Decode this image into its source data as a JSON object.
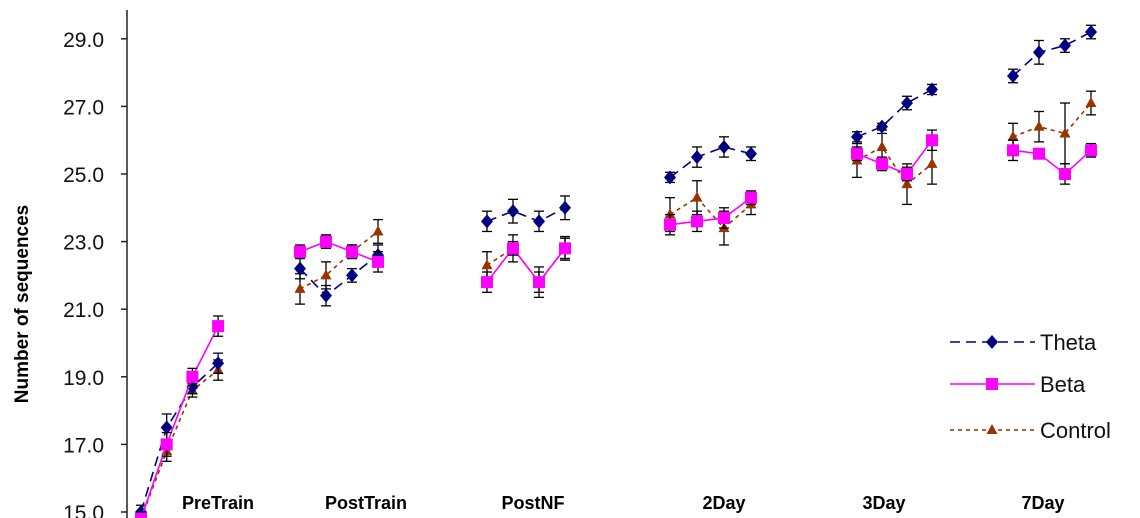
{
  "chart_data": {
    "type": "line",
    "title": "",
    "xlabel": "",
    "ylabel": "Number of sequences",
    "ylim": [
      15.0,
      30.0
    ],
    "yticks": [
      "15.0",
      "17.0",
      "19.0",
      "21.0",
      "23.0",
      "25.0",
      "27.0",
      "29.0"
    ],
    "categories": [
      "PreTrain",
      "PostTrain",
      "PostNF",
      "2Day",
      "3Day",
      "7Day"
    ],
    "points_per_session": 4,
    "legend_position": "right",
    "grid": false,
    "series": [
      {
        "name": "Theta",
        "color": "#000080",
        "line_style": "dashed",
        "marker": "diamond",
        "values": [
          [
            15.0,
            17.5,
            18.7,
            19.4
          ],
          [
            22.2,
            21.4,
            22.0,
            22.6
          ],
          [
            23.6,
            23.9,
            23.6,
            24.0
          ],
          [
            24.9,
            25.5,
            25.8,
            25.6
          ],
          [
            26.1,
            26.4,
            27.1,
            27.5
          ],
          [
            27.9,
            28.6,
            28.8,
            29.2
          ]
        ],
        "errors": [
          [
            0.2,
            0.4,
            0.2,
            0.3
          ],
          [
            0.3,
            0.3,
            0.2,
            0.3
          ],
          [
            0.3,
            0.35,
            0.3,
            0.35
          ],
          [
            0.15,
            0.3,
            0.3,
            0.2
          ],
          [
            0.15,
            0.1,
            0.2,
            0.15
          ],
          [
            0.2,
            0.35,
            0.2,
            0.2
          ]
        ]
      },
      {
        "name": "Beta",
        "color": "#FF00FF",
        "line_style": "solid",
        "marker": "square",
        "values": [
          [
            14.8,
            17.0,
            19.0,
            20.5
          ],
          [
            22.7,
            23.0,
            22.7,
            22.4
          ],
          [
            21.8,
            22.8,
            21.8,
            22.8
          ],
          [
            23.5,
            23.6,
            23.7,
            24.3
          ],
          [
            25.6,
            25.3,
            25.0,
            26.0
          ],
          [
            25.7,
            25.6,
            25.0,
            25.7
          ]
        ],
        "errors": [
          [
            0.2,
            0.35,
            0.25,
            0.3
          ],
          [
            0.2,
            0.2,
            0.2,
            0.3
          ],
          [
            0.3,
            0.2,
            0.3,
            0.3
          ],
          [
            0.3,
            0.3,
            0.3,
            0.2
          ],
          [
            0.2,
            0.2,
            0.2,
            0.3
          ],
          [
            0.3,
            0.15,
            0.3,
            0.2
          ]
        ]
      },
      {
        "name": "Control",
        "color": "#993300",
        "line_style": "dotted",
        "marker": "triangle",
        "values": [
          [
            14.8,
            16.8,
            18.6,
            19.2
          ],
          [
            21.6,
            22.0,
            22.7,
            23.3
          ],
          [
            22.3,
            22.8,
            21.8,
            22.8
          ],
          [
            23.8,
            24.3,
            23.4,
            24.1
          ],
          [
            25.4,
            25.8,
            24.7,
            25.3
          ],
          [
            26.1,
            26.4,
            26.2,
            27.1
          ]
        ],
        "errors": [
          [
            0.2,
            0.3,
            0.2,
            0.3
          ],
          [
            0.45,
            0.4,
            0.2,
            0.35
          ],
          [
            0.4,
            0.4,
            0.45,
            0.35
          ],
          [
            0.5,
            0.5,
            0.5,
            0.3
          ],
          [
            0.5,
            0.4,
            0.6,
            0.6
          ],
          [
            0.4,
            0.45,
            0.9,
            0.35
          ]
        ]
      }
    ]
  }
}
